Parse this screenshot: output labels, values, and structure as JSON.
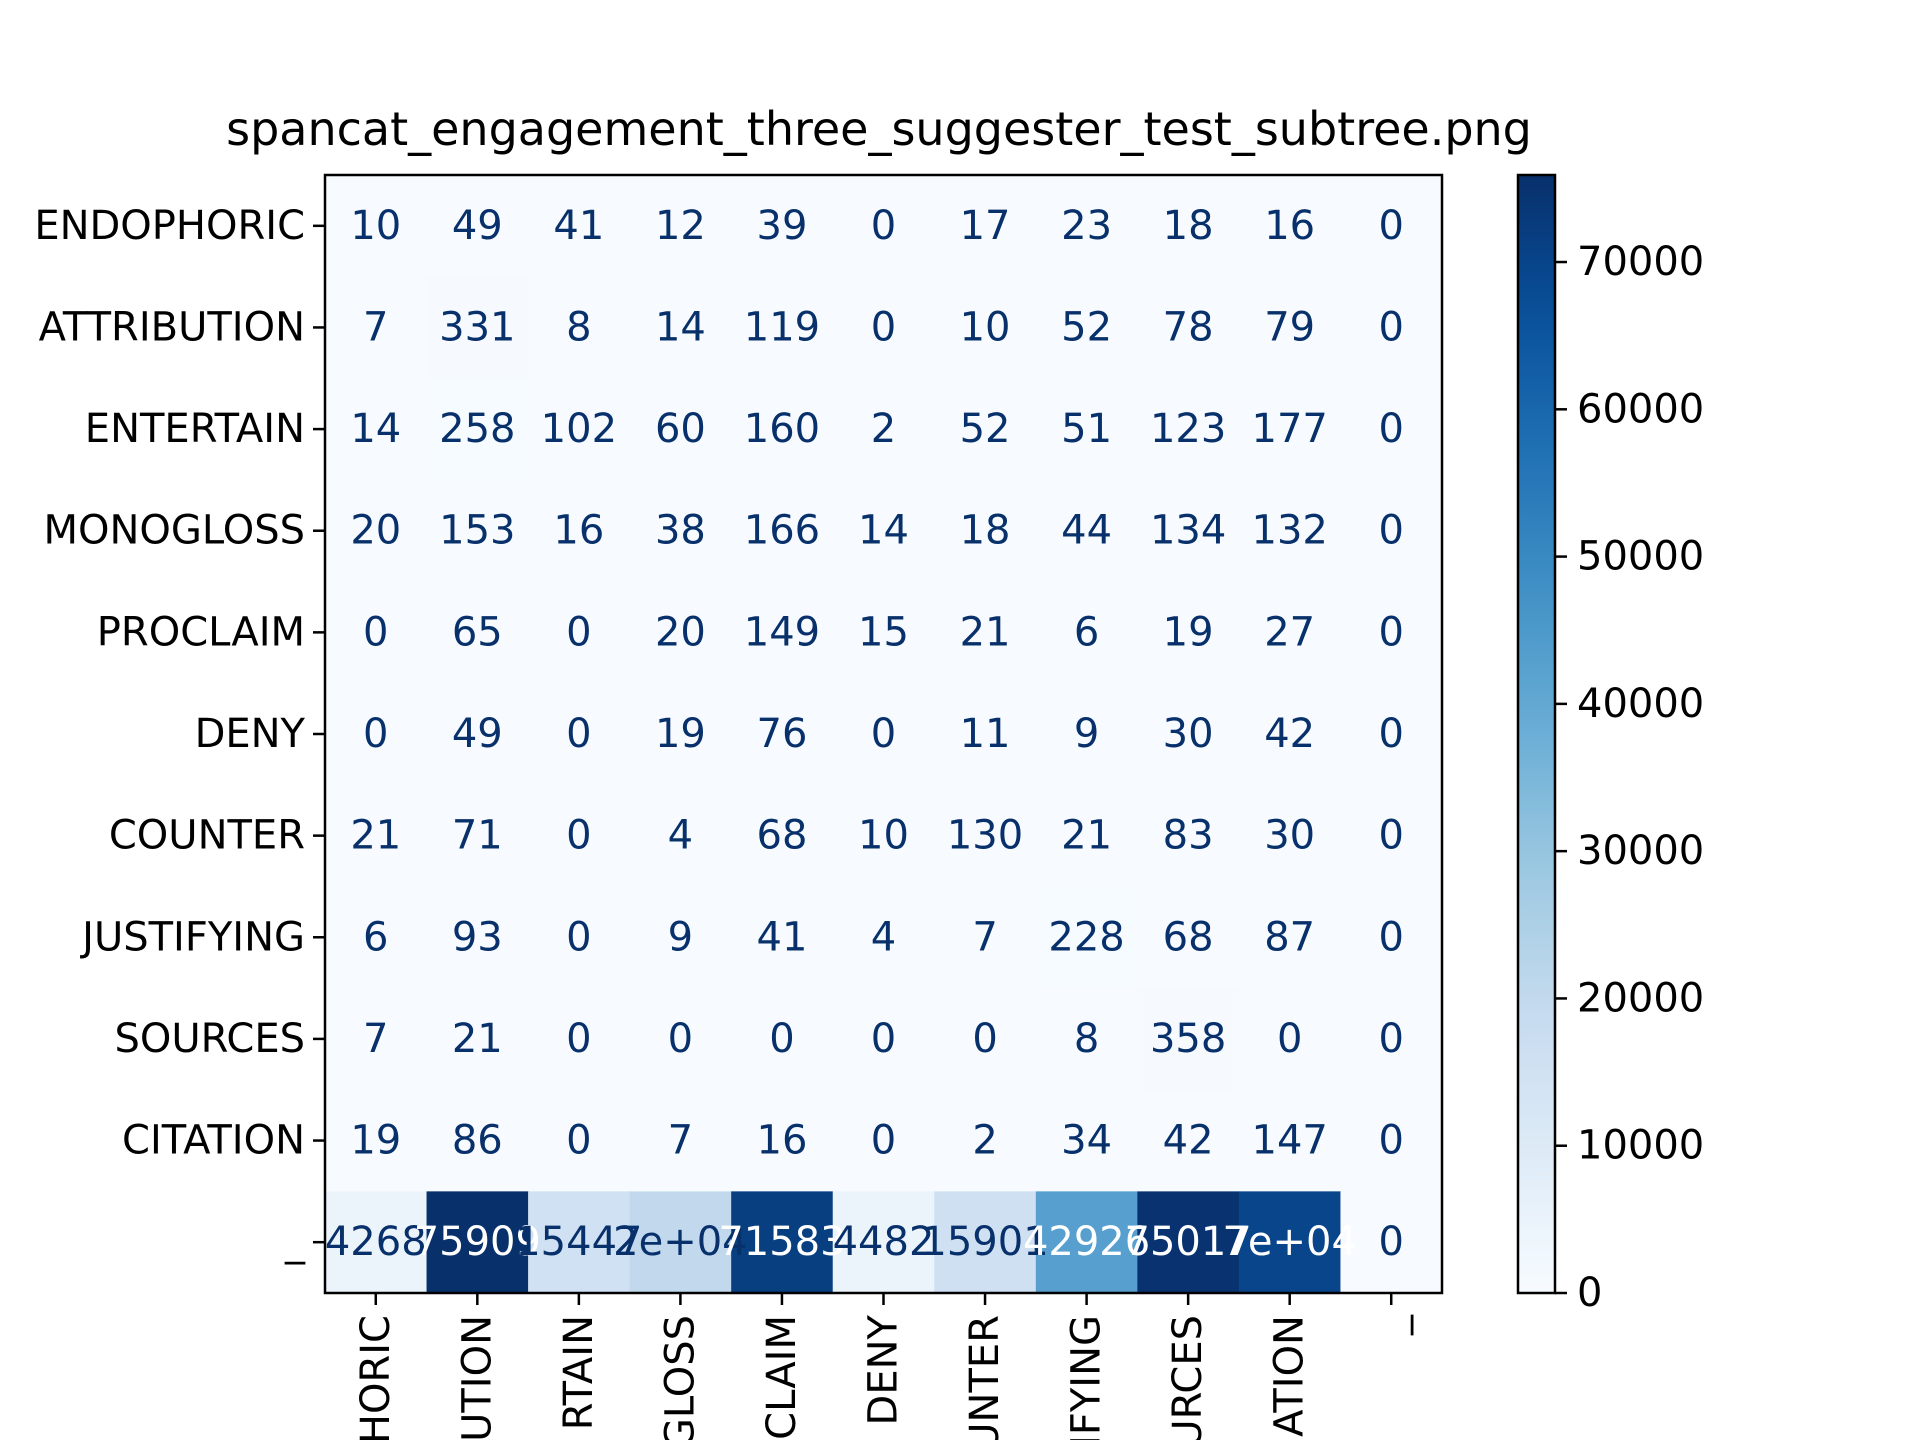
{
  "chart_data": {
    "type": "heatmap",
    "title": "spancat_engagement_three_suggester_test_subtree.png",
    "xlabel": "",
    "ylabel": "",
    "row_labels": [
      "ENDOPHORIC",
      "ATTRIBUTION",
      "ENTERTAIN",
      "MONOGLOSS",
      "PROCLAIM",
      "DENY",
      "COUNTER",
      "JUSTIFYING",
      "SOURCES",
      "CITATION",
      "_"
    ],
    "col_labels_visible": [
      "HORIC",
      "UTION",
      "RTAIN",
      "GLOSS",
      "CLAIM",
      "DENY",
      "UNTER",
      "IFYING",
      "URCES",
      "ATION",
      "_"
    ],
    "values": [
      [
        10,
        49,
        41,
        12,
        39,
        0,
        17,
        23,
        18,
        16,
        0
      ],
      [
        7,
        331,
        8,
        14,
        119,
        0,
        10,
        52,
        78,
        79,
        0
      ],
      [
        14,
        258,
        102,
        60,
        160,
        2,
        52,
        51,
        123,
        177,
        0
      ],
      [
        20,
        153,
        16,
        38,
        166,
        14,
        18,
        44,
        134,
        132,
        0
      ],
      [
        0,
        65,
        0,
        20,
        149,
        15,
        21,
        6,
        19,
        27,
        0
      ],
      [
        0,
        49,
        0,
        19,
        76,
        0,
        11,
        9,
        30,
        42,
        0
      ],
      [
        21,
        71,
        0,
        4,
        68,
        10,
        130,
        21,
        83,
        30,
        0
      ],
      [
        6,
        93,
        0,
        9,
        41,
        4,
        7,
        228,
        68,
        87,
        0
      ],
      [
        7,
        21,
        0,
        0,
        0,
        0,
        0,
        8,
        358,
        0,
        0
      ],
      [
        19,
        86,
        0,
        7,
        16,
        0,
        2,
        34,
        42,
        147,
        0
      ],
      [
        4268,
        75909,
        15447,
        20000,
        71583,
        4482,
        15901,
        42926,
        75017,
        70000,
        0
      ]
    ],
    "cell_text": [
      [
        "10",
        "49",
        "41",
        "12",
        "39",
        "0",
        "17",
        "23",
        "18",
        "16",
        "0"
      ],
      [
        "7",
        "331",
        "8",
        "14",
        "119",
        "0",
        "10",
        "52",
        "78",
        "79",
        "0"
      ],
      [
        "14",
        "258",
        "102",
        "60",
        "160",
        "2",
        "52",
        "51",
        "123",
        "177",
        "0"
      ],
      [
        "20",
        "153",
        "16",
        "38",
        "166",
        "14",
        "18",
        "44",
        "134",
        "132",
        "0"
      ],
      [
        "0",
        "65",
        "0",
        "20",
        "149",
        "15",
        "21",
        "6",
        "19",
        "27",
        "0"
      ],
      [
        "0",
        "49",
        "0",
        "19",
        "76",
        "0",
        "11",
        "9",
        "30",
        "42",
        "0"
      ],
      [
        "21",
        "71",
        "0",
        "4",
        "68",
        "10",
        "130",
        "21",
        "83",
        "30",
        "0"
      ],
      [
        "6",
        "93",
        "0",
        "9",
        "41",
        "4",
        "7",
        "228",
        "68",
        "87",
        "0"
      ],
      [
        "7",
        "21",
        "0",
        "0",
        "0",
        "0",
        "0",
        "8",
        "358",
        "0",
        "0"
      ],
      [
        "19",
        "86",
        "0",
        "7",
        "16",
        "0",
        "2",
        "34",
        "42",
        "147",
        "0"
      ],
      [
        "4268",
        "75909",
        "15447",
        "2e+04",
        "71583",
        "4482",
        "15901",
        "42926",
        "75017",
        "7e+04",
        "0"
      ]
    ],
    "colorbar": {
      "min": 0,
      "max": 75909,
      "ticks": [
        0,
        10000,
        20000,
        30000,
        40000,
        50000,
        60000,
        70000
      ],
      "colormap": "Blues"
    },
    "colors": {
      "text_dark": "#08306b",
      "text_light": "#ffffff",
      "axis": "#000000"
    }
  }
}
